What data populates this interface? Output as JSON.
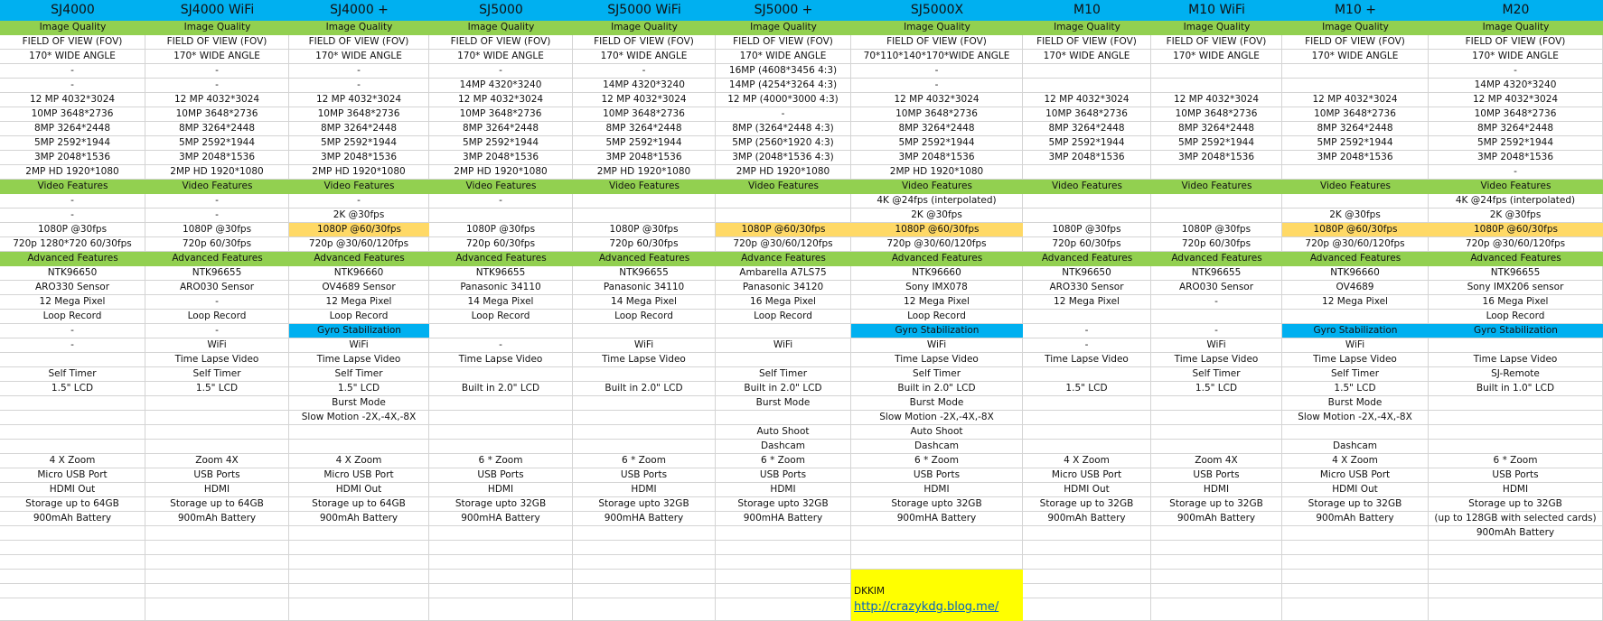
{
  "colors": {
    "header": "#00b0f0",
    "section": "#92d050",
    "highlight_video": "#ffd966",
    "highlight_gyro": "#00b0f0",
    "credit": "#ffff00"
  },
  "section_rows": [
    0,
    11,
    16
  ],
  "columns": [
    {
      "name": "SJ4000",
      "orange_rows": [],
      "blue_rows": [],
      "cells": [
        "Image Quality",
        "FIELD OF VIEW (FOV)",
        "170* WIDE ANGLE",
        "-",
        "-",
        "12 MP 4032*3024",
        "10MP 3648*2736",
        "8MP 3264*2448",
        "5MP 2592*1944",
        "3MP 2048*1536",
        "2MP HD 1920*1080",
        "Video Features",
        "-",
        "-",
        "1080P @30fps",
        "720p 1280*720 60/30fps",
        "Advanced Features",
        "NTK96650",
        "ARO330 Sensor",
        "12 Mega Pixel",
        "Loop Record",
        "-",
        "-",
        "",
        "Self Timer",
        "1.5\" LCD",
        "",
        "",
        "",
        "",
        "4 X Zoom",
        "Micro USB Port",
        "HDMI Out",
        "Storage up to 64GB",
        "900mAh Battery",
        ""
      ]
    },
    {
      "name": "SJ4000 WiFi",
      "orange_rows": [],
      "blue_rows": [],
      "cells": [
        "Image Quality",
        "FIELD OF VIEW (FOV)",
        "170* WIDE ANGLE",
        "-",
        "-",
        "12 MP 4032*3024",
        "10MP 3648*2736",
        "8MP 3264*2448",
        "5MP 2592*1944",
        "3MP 2048*1536",
        "2MP HD 1920*1080",
        "Video Features",
        "-",
        "-",
        "1080P @30fps",
        "720p 60/30fps",
        "Advanced Features",
        "NTK96655",
        "ARO030 Sensor",
        "-",
        "Loop Record",
        "-",
        "WiFi",
        "Time Lapse Video",
        "Self Timer",
        "1.5\" LCD",
        "",
        "",
        "",
        "",
        "Zoom 4X",
        "USB Ports",
        "HDMI",
        "Storage up to 64GB",
        "900mAh Battery",
        ""
      ]
    },
    {
      "name": "SJ4000 +",
      "orange_rows": [
        14
      ],
      "blue_rows": [
        21
      ],
      "cells": [
        "Image Quality",
        "FIELD OF VIEW (FOV)",
        "170* WIDE ANGLE",
        "-",
        "-",
        "12 MP 4032*3024",
        "10MP 3648*2736",
        "8MP 3264*2448",
        "5MP 2592*1944",
        "3MP 2048*1536",
        "2MP HD 1920*1080",
        "Video Features",
        "-",
        "2K @30fps",
        "1080P @60/30fps",
        "720p @30/60/120fps",
        "Advanced Features",
        "NTK96660",
        "OV4689 Sensor",
        "12 Mega Pixel",
        "Loop Record",
        "Gyro Stabilization",
        "WiFi",
        "Time Lapse Video",
        "Self Timer",
        "1.5\" LCD",
        "Burst Mode",
        "Slow Motion -2X,-4X,-8X",
        "",
        "",
        "4 X Zoom",
        "Micro USB Port",
        "HDMI Out",
        "Storage up to 64GB",
        "900mAh Battery",
        ""
      ]
    },
    {
      "name": "SJ5000",
      "orange_rows": [],
      "blue_rows": [],
      "cells": [
        "Image Quality",
        "FIELD OF VIEW (FOV)",
        "170* WIDE ANGLE",
        "-",
        "14MP 4320*3240",
        "12 MP 4032*3024",
        "10MP 3648*2736",
        "8MP 3264*2448",
        "5MP 2592*1944",
        "3MP 2048*1536",
        "2MP HD 1920*1080",
        "Video Features",
        "-",
        "",
        "1080P @30fps",
        "720p 60/30fps",
        "Advanced Features",
        "NTK96655",
        "Panasonic 34110",
        "14 Mega Pixel",
        "Loop Record",
        "",
        "-",
        "Time Lapse Video",
        "",
        "Built in 2.0\" LCD",
        "",
        "",
        "",
        "",
        "6 * Zoom",
        "USB Ports",
        "HDMI",
        "Storage upto 32GB",
        "900mHA Battery",
        ""
      ]
    },
    {
      "name": "SJ5000 WiFi",
      "orange_rows": [],
      "blue_rows": [],
      "cells": [
        "Image Quality",
        "FIELD OF VIEW (FOV)",
        "170* WIDE ANGLE",
        "-",
        "14MP 4320*3240",
        "12 MP 4032*3024",
        "10MP 3648*2736",
        "8MP 3264*2448",
        "5MP 2592*1944",
        "3MP 2048*1536",
        "2MP HD 1920*1080",
        "Video Features",
        "",
        "",
        "1080P @30fps",
        "720p 60/30fps",
        "Advanced Features",
        "NTK96655",
        "Panasonic 34110",
        "14 Mega Pixel",
        "Loop Record",
        "",
        "WiFi",
        "Time Lapse Video",
        "",
        "Built in 2.0\" LCD",
        "",
        "",
        "",
        "",
        "6 * Zoom",
        "USB Ports",
        "HDMI",
        "Storage upto 32GB",
        "900mHA Battery",
        ""
      ]
    },
    {
      "name": "SJ5000 +",
      "orange_rows": [
        14
      ],
      "blue_rows": [],
      "cells": [
        "Image Quality",
        "FIELD OF VIEW (FOV)",
        "170* WIDE ANGLE",
        "16MP (4608*3456 4:3)",
        "14MP (4254*3264 4:3)",
        "12 MP (4000*3000 4:3)",
        "-",
        "8MP (3264*2448 4:3)",
        "5MP (2560*1920 4:3)",
        "3MP (2048*1536 4:3)",
        "2MP HD 1920*1080",
        "Video Features",
        "",
        "",
        "1080P @60/30fps",
        "720p @30/60/120fps",
        "Advance Features",
        "Ambarella A7LS75",
        "Panasonic 34120",
        "16 Mega Pixel",
        "Loop Record",
        "",
        "WiFi",
        "",
        "Self Timer",
        "Built in 2.0\" LCD",
        "Burst Mode",
        "",
        "Auto Shoot",
        "Dashcam",
        "6 * Zoom",
        "USB Ports",
        "HDMI",
        "Storage upto 32GB",
        "900mHA Battery",
        ""
      ]
    },
    {
      "name": "SJ5000X",
      "orange_rows": [
        14
      ],
      "blue_rows": [
        21
      ],
      "cells": [
        "Image Quality",
        "FIELD OF VIEW (FOV)",
        "70*110*140*170*WIDE ANGLE",
        "-",
        "-",
        "12 MP 4032*3024",
        "10MP 3648*2736",
        "8MP 3264*2448",
        "5MP 2592*1944",
        "3MP 2048*1536",
        "2MP HD 1920*1080",
        "Video Features",
        "4K @24fps (interpolated)",
        "2K @30fps",
        "1080P @60/30fps",
        "720p @30/60/120fps",
        "Advanced Features",
        "NTK96660",
        "Sony IMX078",
        "12 Mega Pixel",
        "Loop Record",
        "Gyro Stabilization",
        "WiFi",
        "Time Lapse Video",
        "Self Timer",
        "Built in 2.0\" LCD",
        "Burst Mode",
        "Slow Motion -2X,-4X,-8X",
        "Auto Shoot",
        "Dashcam",
        "6 * Zoom",
        "USB Ports",
        "HDMI",
        "Storage upto 32GB",
        "900mHA Battery",
        ""
      ]
    },
    {
      "name": "M10",
      "orange_rows": [],
      "blue_rows": [],
      "cells": [
        "Image Quality",
        "FIELD OF VIEW (FOV)",
        "170* WIDE ANGLE",
        "",
        "",
        "12 MP 4032*3024",
        "10MP 3648*2736",
        "8MP 3264*2448",
        "5MP 2592*1944",
        "3MP 2048*1536",
        "",
        "Video Features",
        "",
        "",
        "1080P @30fps",
        "720p 60/30fps",
        "Advanced Features",
        "NTK96650",
        "ARO330 Sensor",
        "12 Mega Pixel",
        "",
        "-",
        "-",
        "Time Lapse Video",
        "",
        "1.5\" LCD",
        "",
        "",
        "",
        "",
        "4 X Zoom",
        "Micro USB Port",
        "HDMI Out",
        "Storage up to 32GB",
        "900mAh Battery",
        ""
      ]
    },
    {
      "name": "M10 WiFi",
      "orange_rows": [],
      "blue_rows": [],
      "cells": [
        "Image Quality",
        "FIELD OF VIEW (FOV)",
        "170* WIDE ANGLE",
        "",
        "",
        "12 MP 4032*3024",
        "10MP 3648*2736",
        "8MP 3264*2448",
        "5MP 2592*1944",
        "3MP 2048*1536",
        "",
        "Video Features",
        "",
        "",
        "1080P @30fps",
        "720p 60/30fps",
        "Advanced Features",
        "NTK96655",
        "ARO030 Sensor",
        "-",
        "",
        "-",
        "WiFi",
        "Time Lapse Video",
        "Self Timer",
        "1.5\" LCD",
        "",
        "",
        "",
        "",
        "Zoom 4X",
        "USB Ports",
        "HDMI",
        "Storage up to 32GB",
        "900mAh Battery",
        ""
      ]
    },
    {
      "name": "M10 +",
      "orange_rows": [
        14
      ],
      "blue_rows": [
        21
      ],
      "cells": [
        "Image Quality",
        "FIELD OF VIEW (FOV)",
        "170* WIDE ANGLE",
        "",
        "",
        "12 MP 4032*3024",
        "10MP 3648*2736",
        "8MP 3264*2448",
        "5MP 2592*1944",
        "3MP 2048*1536",
        "",
        "Video Features",
        "",
        "2K @30fps",
        "1080P @60/30fps",
        "720p @30/60/120fps",
        "Advanced Features",
        "NTK96660",
        "OV4689",
        "12 Mega Pixel",
        "",
        "Gyro Stabilization",
        "WiFi",
        "Time Lapse Video",
        "Self Timer",
        "1.5\" LCD",
        "Burst Mode",
        "Slow Motion -2X,-4X,-8X",
        "",
        "Dashcam",
        "4 X Zoom",
        "Micro USB Port",
        "HDMI Out",
        "Storage up to 32GB",
        "900mAh Battery",
        ""
      ]
    },
    {
      "name": "M20",
      "orange_rows": [
        14
      ],
      "blue_rows": [
        21
      ],
      "cells": [
        "Image Quality",
        "FIELD OF VIEW (FOV)",
        "170* WIDE ANGLE",
        "-",
        "14MP 4320*3240",
        "12 MP 4032*3024",
        "10MP 3648*2736",
        "8MP 3264*2448",
        "5MP 2592*1944",
        "3MP 2048*1536",
        "-",
        "Video Features",
        "4K @24fps (interpolated)",
        "2K @30fps",
        "1080P @60/30fps",
        "720p @30/60/120fps",
        "Advanced Features",
        "NTK96655",
        "Sony IMX206 sensor",
        "16 Mega Pixel",
        "Loop Record",
        "Gyro Stabilization",
        "",
        "Time Lapse Video",
        "SJ-Remote",
        "Built in 1.0\" LCD",
        "",
        "",
        "",
        "",
        "6 * Zoom",
        "USB Ports",
        "HDMI",
        "Storage up to 32GB",
        "(up to 128GB with selected cards)",
        "900mAh Battery"
      ]
    }
  ],
  "credit": {
    "author": "DKKIM",
    "link": "http://crazykdg.blog.me/"
  }
}
